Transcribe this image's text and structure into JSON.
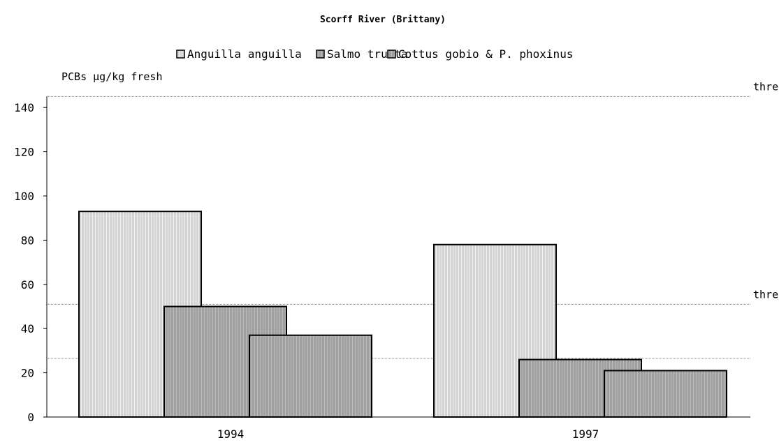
{
  "chart_data": {
    "type": "bar",
    "title": "Scorff River (Brittany)",
    "ylabel": "PCBs µg/kg fresh",
    "xlabel": "",
    "ylim": [
      0,
      145
    ],
    "yticks": [
      0,
      20,
      40,
      60,
      80,
      100,
      120,
      140
    ],
    "categories": [
      "1994",
      "1997"
    ],
    "series": [
      {
        "name": "Anguilla anguilla",
        "values": [
          93,
          78
        ],
        "color": "#d9d9d9"
      },
      {
        "name": "Salmo trutta",
        "values": [
          50,
          26
        ],
        "color": "#a6a6a6"
      },
      {
        "name": "Cottus gobio & P. phoxinus",
        "values": [
          37,
          21
        ],
        "color": "#a6a6a6"
      }
    ],
    "thresholds": [
      {
        "value": 145,
        "label": "threshold"
      },
      {
        "value": 51,
        "label": "threshold"
      },
      {
        "value": 26.5,
        "label": ""
      }
    ],
    "legend_position": "top",
    "grid": false
  }
}
